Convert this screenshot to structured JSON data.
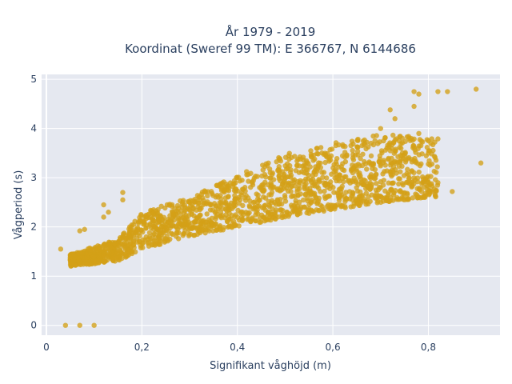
{
  "chart_data": {
    "type": "scatter",
    "title_line1": "År 1979 - 2019",
    "title_line2": "Koordinat (Sweref 99 TM): E 366767, N 6144686",
    "xlabel": "Signifikant våghöjd (m)",
    "ylabel": "Vågperiod (s)",
    "xlim": [
      -0.01,
      0.95
    ],
    "ylim": [
      -0.2,
      5.1
    ],
    "xticks": [
      0,
      0.2,
      0.4,
      0.6,
      0.8
    ],
    "xtick_labels": [
      "0",
      "0,2",
      "0,4",
      "0,6",
      "0,8"
    ],
    "yticks": [
      0,
      1,
      2,
      3,
      4,
      5
    ],
    "ytick_labels": [
      "0",
      "1",
      "2",
      "3",
      "4",
      "5"
    ],
    "grid": true,
    "marker_color": "#d4a017",
    "background_color": "#e5e8f0",
    "outliers": [
      {
        "x": 0.04,
        "y": 0.0
      },
      {
        "x": 0.07,
        "y": 0.0
      },
      {
        "x": 0.1,
        "y": 0.0
      },
      {
        "x": 0.03,
        "y": 1.55
      },
      {
        "x": 0.07,
        "y": 1.92
      },
      {
        "x": 0.08,
        "y": 1.95
      },
      {
        "x": 0.12,
        "y": 2.2
      },
      {
        "x": 0.12,
        "y": 2.45
      },
      {
        "x": 0.13,
        "y": 2.3
      },
      {
        "x": 0.16,
        "y": 2.55
      },
      {
        "x": 0.16,
        "y": 2.7
      },
      {
        "x": 0.84,
        "y": 4.75
      },
      {
        "x": 0.82,
        "y": 4.75
      },
      {
        "x": 0.9,
        "y": 4.8
      },
      {
        "x": 0.78,
        "y": 4.7
      },
      {
        "x": 0.77,
        "y": 4.75
      },
      {
        "x": 0.77,
        "y": 4.45
      },
      {
        "x": 0.91,
        "y": 3.3
      },
      {
        "x": 0.85,
        "y": 2.72
      },
      {
        "x": 0.82,
        "y": 2.9
      },
      {
        "x": 0.8,
        "y": 3.75
      },
      {
        "x": 0.8,
        "y": 3.5
      },
      {
        "x": 0.78,
        "y": 3.9
      },
      {
        "x": 0.75,
        "y": 3.45
      },
      {
        "x": 0.73,
        "y": 4.2
      },
      {
        "x": 0.72,
        "y": 4.38
      },
      {
        "x": 0.7,
        "y": 4.0
      },
      {
        "x": 0.68,
        "y": 3.7
      },
      {
        "x": 0.76,
        "y": 3.8
      }
    ],
    "band": {
      "x_min": 0.05,
      "x_max": 0.82,
      "lower": [
        [
          0.05,
          1.2
        ],
        [
          0.15,
          1.3
        ],
        [
          0.2,
          1.55
        ],
        [
          0.3,
          1.8
        ],
        [
          0.4,
          2.0
        ],
        [
          0.5,
          2.2
        ],
        [
          0.6,
          2.35
        ],
        [
          0.7,
          2.5
        ],
        [
          0.8,
          2.6
        ]
      ],
      "upper": [
        [
          0.05,
          1.45
        ],
        [
          0.15,
          1.75
        ],
        [
          0.2,
          2.3
        ],
        [
          0.3,
          2.6
        ],
        [
          0.4,
          3.05
        ],
        [
          0.5,
          3.5
        ],
        [
          0.6,
          3.7
        ],
        [
          0.7,
          3.9
        ],
        [
          0.8,
          3.8
        ]
      ]
    }
  }
}
